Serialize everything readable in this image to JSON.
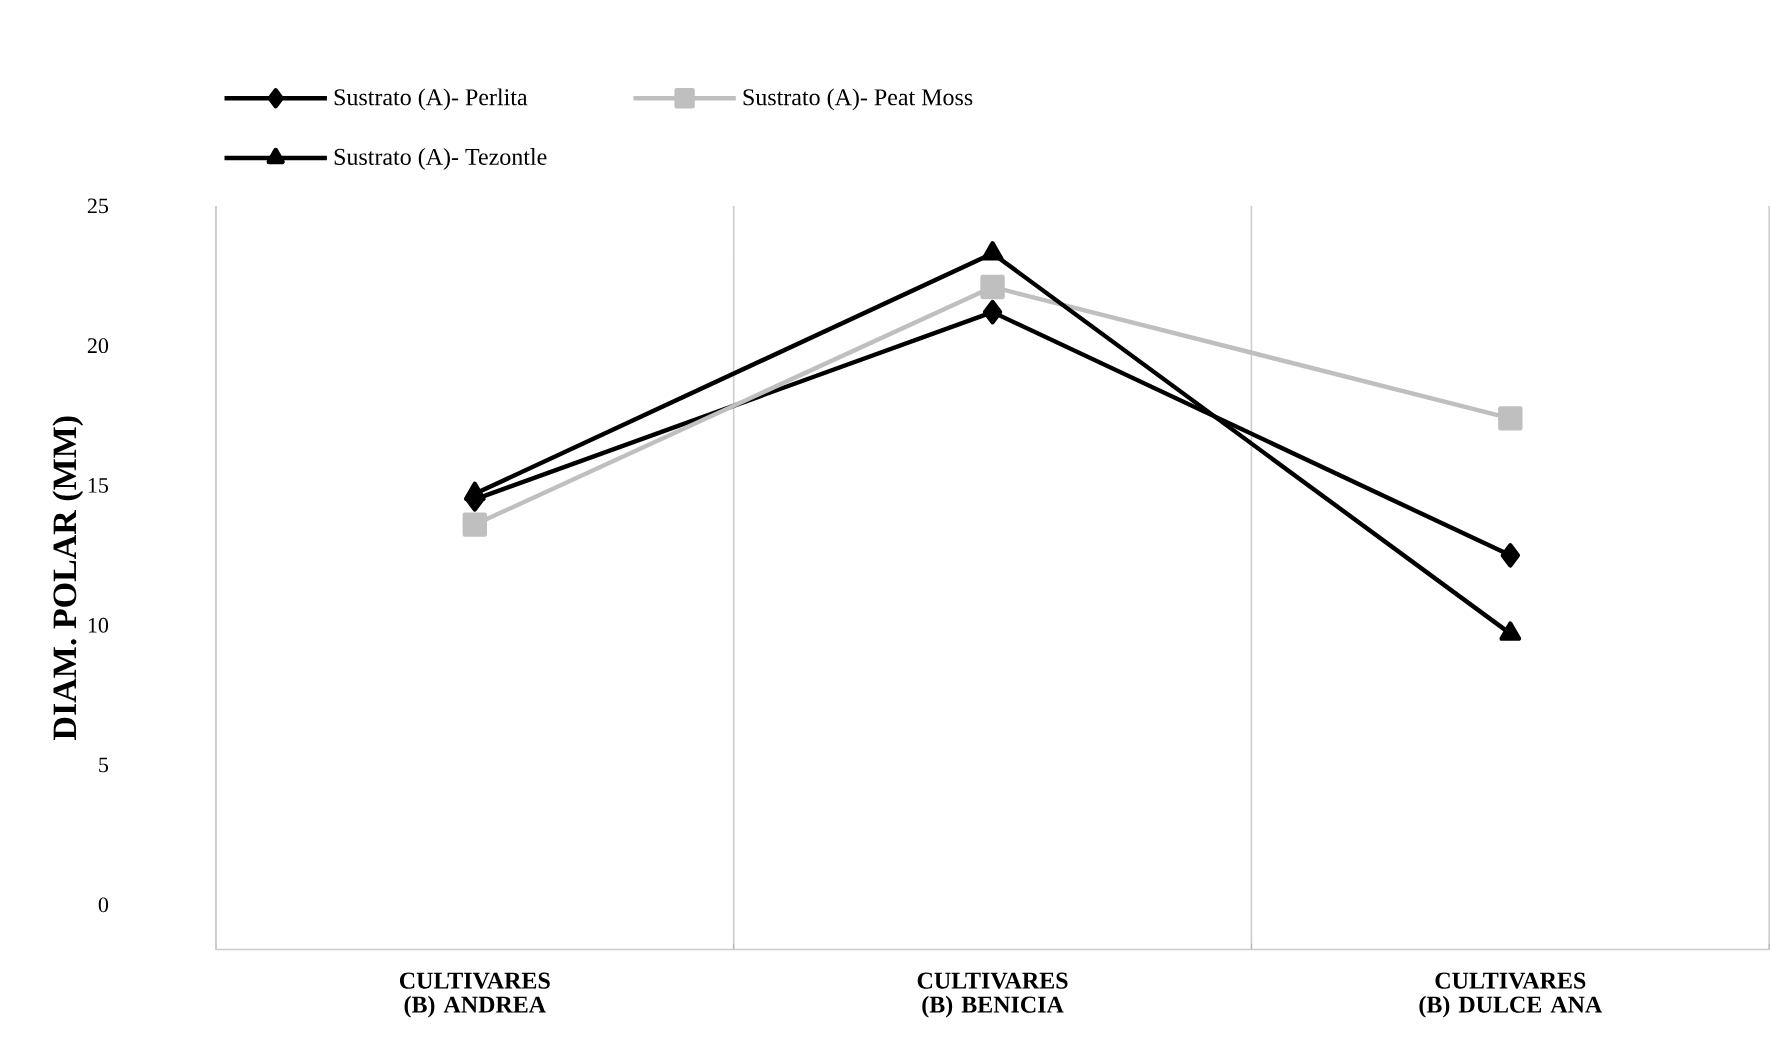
{
  "chart_data": {
    "type": "line",
    "ylabel": "DIAM. POLAR (MM)",
    "categories": [
      "CULTIVARES (B) ANDREA",
      "CULTIVARES (B) BENICIA",
      "CULTIVARES (B) DULCE ANA"
    ],
    "series": [
      {
        "name": "Sustrato (A)- Perlita",
        "color": "#000000",
        "marker": "diamond",
        "values": [
          14.5,
          21.2,
          12.5
        ]
      },
      {
        "name": "Sustrato (A)- Peat Moss",
        "color": "#bfbfbf",
        "marker": "square",
        "values": [
          13.6,
          22.1,
          17.4
        ]
      },
      {
        "name": "Sustrato (A)- Tezontle",
        "color": "#000000",
        "marker": "triangle",
        "values": [
          14.7,
          23.3,
          9.7
        ]
      }
    ],
    "ylim": [
      -1.6,
      25
    ],
    "yticks": [
      0,
      5,
      10,
      15,
      20,
      25
    ],
    "grid": "x",
    "legend": "top left"
  }
}
